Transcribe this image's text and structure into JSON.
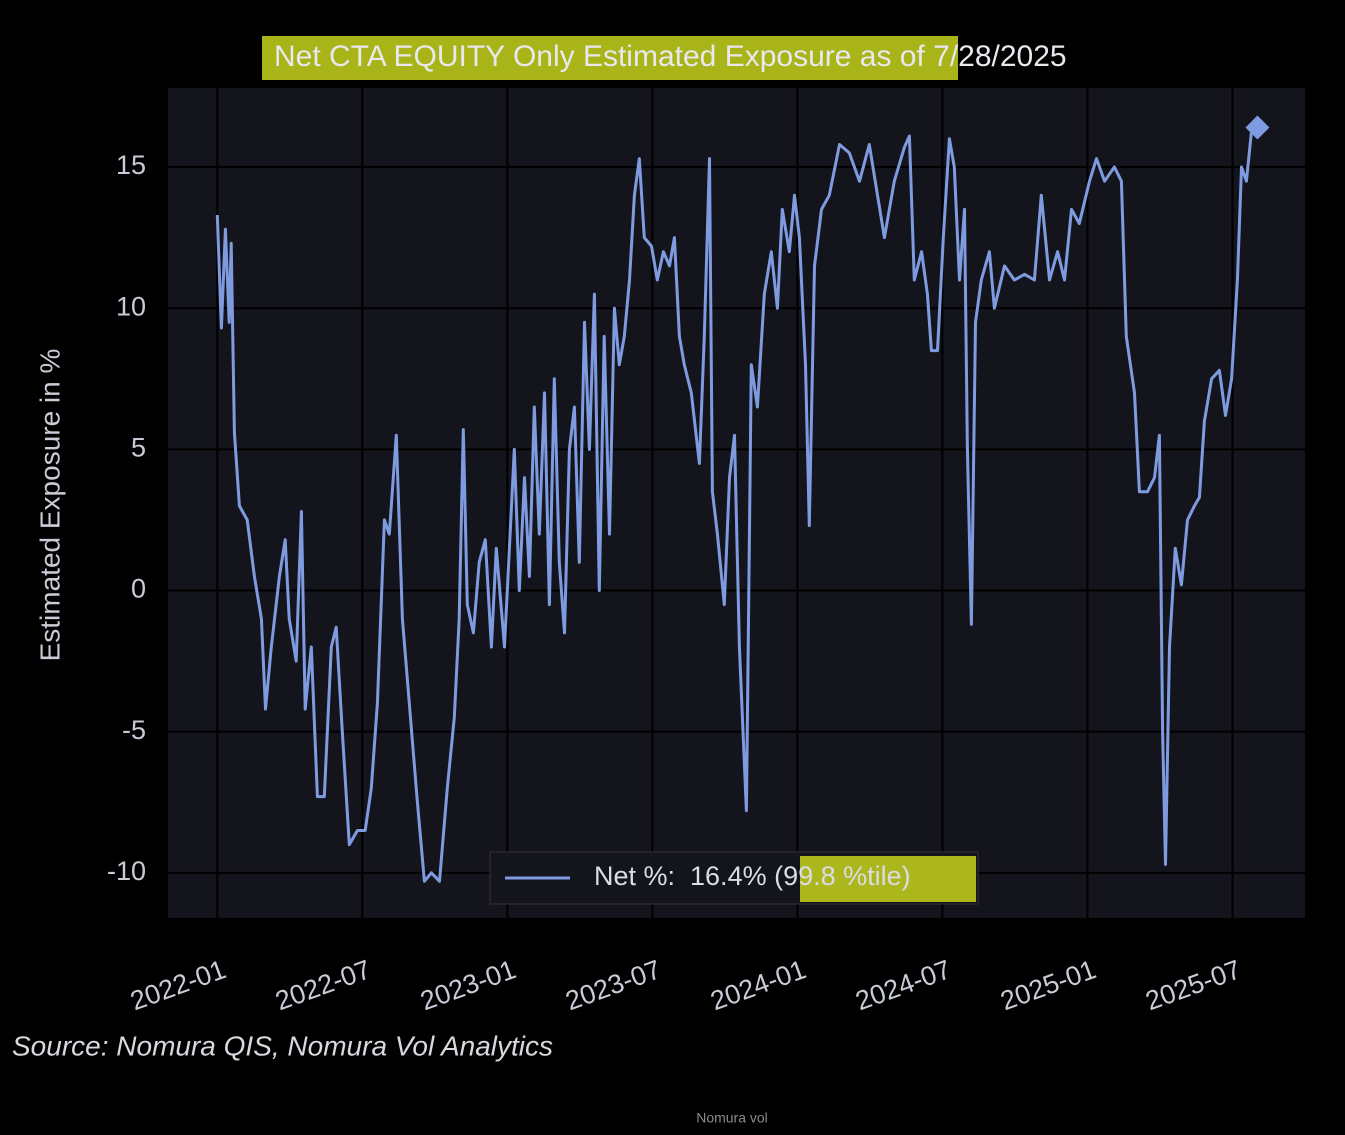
{
  "chart_data": {
    "type": "line",
    "title": "Net CTA EQUITY Only Estimated Exposure as of 7/28/2025",
    "y_label": "Estimated Exposure in %",
    "source": "Source: Nomura QIS, Nomura Vol Analytics",
    "footer": "Nomura vol",
    "grid": true,
    "legend": "lower center",
    "xlim": [
      2021.83,
      2025.75
    ],
    "ylim": [
      -11.6,
      17.8
    ],
    "xticks": [
      {
        "value": 2022.0,
        "label": "2022-01"
      },
      {
        "value": 2022.5,
        "label": "2022-07"
      },
      {
        "value": 2023.0,
        "label": "2023-01"
      },
      {
        "value": 2023.5,
        "label": "2023-07"
      },
      {
        "value": 2024.0,
        "label": "2024-01"
      },
      {
        "value": 2024.5,
        "label": "2024-07"
      },
      {
        "value": 2025.0,
        "label": "2025-01"
      },
      {
        "value": 2025.5,
        "label": "2025-07"
      }
    ],
    "yticks": [
      -10,
      -5,
      0,
      5,
      10,
      15
    ],
    "x": [
      2022.0,
      2022.014,
      2022.028,
      2022.041,
      2022.048,
      2022.059,
      2022.076,
      2022.103,
      2022.128,
      2022.152,
      2022.166,
      2022.186,
      2022.214,
      2022.234,
      2022.248,
      2022.272,
      2022.29,
      2022.303,
      2022.324,
      2022.345,
      2022.369,
      2022.393,
      2022.41,
      2022.431,
      2022.455,
      2022.483,
      2022.51,
      2022.531,
      2022.552,
      2022.576,
      2022.593,
      2022.617,
      2022.638,
      2022.662,
      2022.69,
      2022.714,
      2022.738,
      2022.766,
      2022.793,
      2022.817,
      2022.834,
      2022.848,
      2022.862,
      2022.883,
      2022.903,
      2022.924,
      2022.945,
      2022.962,
      2022.99,
      2023.007,
      2023.024,
      2023.041,
      2023.059,
      2023.076,
      2023.093,
      2023.11,
      2023.128,
      2023.145,
      2023.162,
      2023.179,
      2023.197,
      2023.214,
      2023.231,
      2023.248,
      2023.266,
      2023.283,
      2023.3,
      2023.317,
      2023.334,
      2023.352,
      2023.369,
      2023.386,
      2023.403,
      2023.421,
      2023.438,
      2023.455,
      2023.472,
      2023.497,
      2023.517,
      2023.538,
      2023.559,
      2023.576,
      2023.593,
      2023.61,
      2023.634,
      2023.662,
      2023.679,
      2023.697,
      2023.707,
      2023.724,
      2023.748,
      2023.766,
      2023.783,
      2023.8,
      2023.824,
      2023.841,
      2023.862,
      2023.886,
      2023.91,
      2023.931,
      2023.948,
      2023.972,
      2023.99,
      2024.007,
      2024.028,
      2024.041,
      2024.059,
      2024.083,
      2024.11,
      2024.145,
      2024.179,
      2024.214,
      2024.248,
      2024.276,
      2024.3,
      2024.334,
      2024.369,
      2024.386,
      2024.403,
      2024.428,
      2024.448,
      2024.462,
      2024.483,
      2024.503,
      2024.524,
      2024.541,
      2024.559,
      2024.576,
      2024.586,
      2024.6,
      2024.614,
      2024.634,
      2024.662,
      2024.679,
      2024.714,
      2024.748,
      2024.783,
      2024.817,
      2024.841,
      2024.869,
      2024.897,
      2024.921,
      2024.945,
      2024.972,
      2025.007,
      2025.031,
      2025.059,
      2025.093,
      2025.117,
      2025.134,
      2025.162,
      2025.179,
      2025.207,
      2025.231,
      2025.248,
      2025.259,
      2025.269,
      2025.283,
      2025.303,
      2025.324,
      2025.345,
      2025.369,
      2025.386,
      2025.403,
      2025.428,
      2025.455,
      2025.476,
      2025.497,
      2025.517,
      2025.531,
      2025.548,
      2025.566,
      2025.586
    ],
    "series": [
      {
        "name": "Net %:  16.4% (99.8 %tile)",
        "color": "#7f9be0",
        "values": [
          13.3,
          9.3,
          12.8,
          9.5,
          12.3,
          5.6,
          3,
          2.5,
          0.5,
          -1,
          -4.2,
          -2,
          0.5,
          1.8,
          -1,
          -2.5,
          2.8,
          -4.2,
          -2,
          -7.3,
          -7.3,
          -2,
          -1.3,
          -5,
          -9,
          -8.5,
          -8.5,
          -7,
          -4,
          2.5,
          2,
          5.5,
          -1,
          -4,
          -7.5,
          -10.3,
          -10,
          -10.3,
          -7,
          -4.5,
          -1,
          5.7,
          -0.5,
          -1.5,
          1,
          1.8,
          -2,
          1.5,
          -2,
          1.5,
          5,
          0,
          4,
          0.5,
          6.5,
          2,
          7,
          -0.5,
          7.5,
          1,
          -1.5,
          5,
          6.5,
          1,
          9.5,
          5,
          10.5,
          0,
          9,
          2,
          10,
          8,
          9,
          11,
          14,
          15.3,
          12.5,
          12.2,
          11,
          12,
          11.5,
          12.5,
          9,
          8,
          7,
          4.5,
          9,
          15.3,
          3.5,
          2,
          -0.5,
          4,
          5.5,
          -2,
          -7.8,
          8,
          6.5,
          10.5,
          12,
          10,
          13.5,
          12,
          14,
          12.5,
          8,
          2.3,
          11.5,
          13.5,
          14,
          15.8,
          15.5,
          14.5,
          15.8,
          14,
          12.5,
          14.5,
          15.7,
          16.1,
          11,
          12,
          10.5,
          8.5,
          8.5,
          12.5,
          16,
          15,
          11,
          13.5,
          5,
          -1.2,
          9.5,
          11,
          12,
          10,
          11.5,
          11,
          11.2,
          11,
          14,
          11,
          12,
          11,
          13.5,
          13,
          14.5,
          15.3,
          14.5,
          15,
          14.5,
          9,
          7,
          3.5,
          3.5,
          4,
          5.5,
          -5,
          -9.7,
          -2,
          1.5,
          0.2,
          2.5,
          3,
          3.3,
          6,
          7.5,
          7.8,
          6.2,
          7.5,
          11,
          15,
          14.5,
          16.3,
          16.4
        ]
      }
    ]
  }
}
